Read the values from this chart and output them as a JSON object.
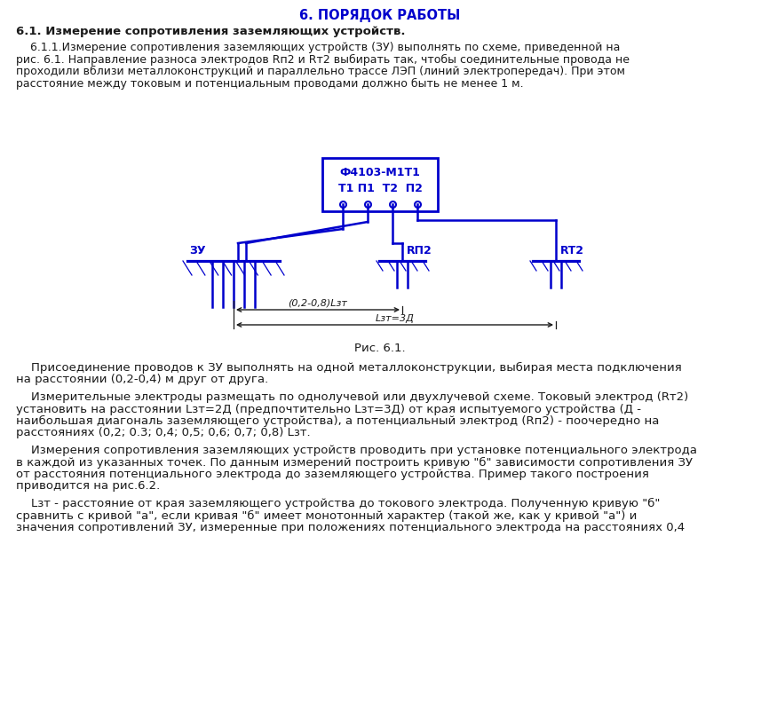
{
  "title": "6. ПОРЯДОК РАБОТЫ",
  "section_title": "6.1. Измерение сопротивления заземляющих устройств.",
  "blue_color": "#0000CC",
  "text_color": "#1a1a1a",
  "bg_color": "#ffffff",
  "device_label1": "Ф4103-М1Т1",
  "device_label2": "Т1 П1  Т2  П2",
  "zu_label": "ЗУ",
  "rp2_label": "RП2",
  "rt2_label": "RТ2",
  "dim1_label": "(0,2-0,8)Lзт",
  "dim2_label": "Lзт=3Д",
  "fig_caption": "Рис. 6.1.",
  "p1_lines": [
    "    6.1.1.Измерение сопротивления заземляющих устройств (ЗУ) выполнять по схеме, приведенной на",
    "рис. 6.1. Направление разноса электродов Rп2 и Rт2 выбирать так, чтобы соединительные провода не",
    "проходили вблизи металлоконструкций и параллельно трассе ЛЭП (линий электропередач). При этом",
    "расстояние между токовым и потенциальным проводами должно быть не менее 1 м."
  ],
  "p2_lines": [
    "    Присоединение проводов к ЗУ выполнять на одной металлоконструкции, выбирая места подключения",
    "на расстоянии (0,2-0,4) м друг от друга."
  ],
  "p3_lines": [
    "    Измерительные электроды размещать по однолучевой или двухлучевой схеме. Токовый электрод (Rт2)",
    "установить на расстоянии Lзт=2Д (предпочтительно Lзт=3Д) от края испытуемого устройства (Д -",
    "наибольшая диагональ заземляющего устройства), а потенциальный электрод (Rп2) - поочередно на",
    "расстояниях (0,2; 0.3; 0,4; 0,5; 0,6; 0,7; 0,8) Lзт."
  ],
  "p4_lines": [
    "    Измерения сопротивления заземляющих устройств проводить при установке потенциального электрода",
    "в каждой из указанных точек. По данным измерений построить кривую \"б\" зависимости сопротивления ЗУ",
    "от расстояния потенциального электрода до заземляющего устройства. Пример такого построения",
    "приводится на рис.6.2."
  ],
  "p5_lines": [
    "    Lзт - расстояние от края заземляющего устройства до токового электрода. Полученную кривую \"б\"",
    "сравнить с кривой \"а\", если кривая \"б\" имеет монотонный характер (такой же, как у кривой \"а\") и",
    "значения сопротивлений ЗУ, измеренные при положениях потенциального электрода на расстояниях 0,4"
  ]
}
